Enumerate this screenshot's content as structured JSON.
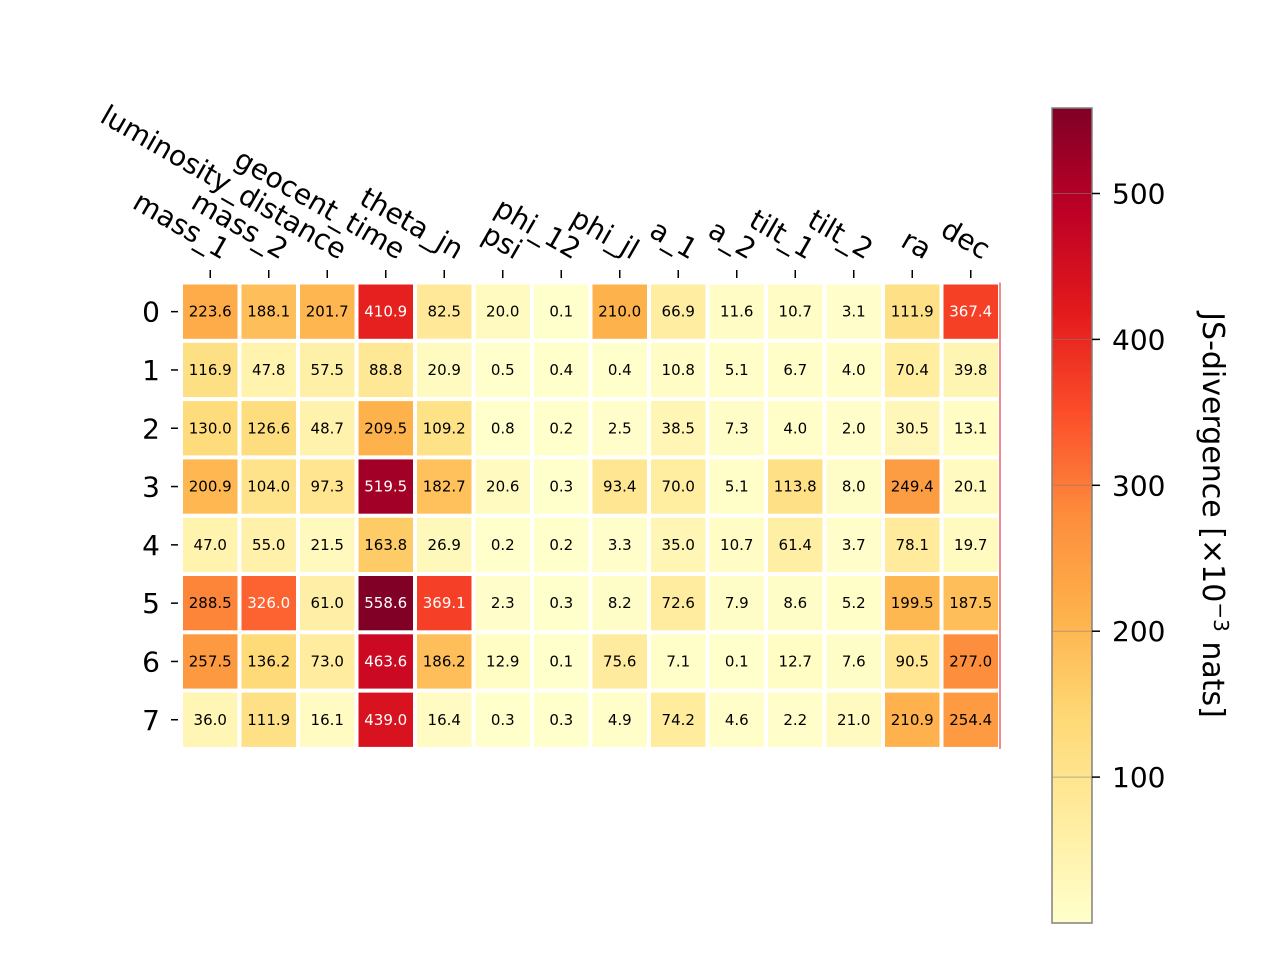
{
  "chart_data": {
    "type": "heatmap",
    "columns": [
      "mass_1",
      "mass_2",
      "luminosity_distance",
      "geocent_time",
      "theta_jn",
      "psi",
      "phi_12",
      "phi_jl",
      "a_1",
      "a_2",
      "tilt_1",
      "tilt_2",
      "ra",
      "dec"
    ],
    "rows": [
      "0",
      "1",
      "2",
      "3",
      "4",
      "5",
      "6",
      "7"
    ],
    "values": [
      [
        223.6,
        188.1,
        201.7,
        410.9,
        82.5,
        20.0,
        0.1,
        210.0,
        66.9,
        11.6,
        10.7,
        3.1,
        111.9,
        367.4
      ],
      [
        116.9,
        47.8,
        57.5,
        88.8,
        20.9,
        0.5,
        0.4,
        0.4,
        10.8,
        5.1,
        6.7,
        4.0,
        70.4,
        39.8
      ],
      [
        130.0,
        126.6,
        48.7,
        209.5,
        109.2,
        0.8,
        0.2,
        2.5,
        38.5,
        7.3,
        4.0,
        2.0,
        30.5,
        13.1
      ],
      [
        200.9,
        104.0,
        97.3,
        519.5,
        182.7,
        20.6,
        0.3,
        93.4,
        70.0,
        5.1,
        113.8,
        8.0,
        249.4,
        20.1
      ],
      [
        47.0,
        55.0,
        21.5,
        163.8,
        26.9,
        0.2,
        0.2,
        3.3,
        35.0,
        10.7,
        61.4,
        3.7,
        78.1,
        19.7
      ],
      [
        288.5,
        326.0,
        61.0,
        558.6,
        369.1,
        2.3,
        0.3,
        8.2,
        72.6,
        7.9,
        8.6,
        5.2,
        199.5,
        187.5
      ],
      [
        257.5,
        136.2,
        73.0,
        463.6,
        186.2,
        12.9,
        0.1,
        75.6,
        7.1,
        0.1,
        12.7,
        7.6,
        90.5,
        277.0
      ],
      [
        36.0,
        111.9,
        16.1,
        439.0,
        16.4,
        0.3,
        0.3,
        4.9,
        74.2,
        4.6,
        2.2,
        21.0,
        210.9,
        254.4
      ]
    ],
    "colormap": "YlOrRd",
    "vmin": 0,
    "vmax": 558.6,
    "colorbar": {
      "ticks": [
        100,
        200,
        300,
        400,
        500
      ],
      "label_main": "JS-divergence [×10",
      "label_sup": "−3",
      "label_tail": " nats]"
    }
  }
}
